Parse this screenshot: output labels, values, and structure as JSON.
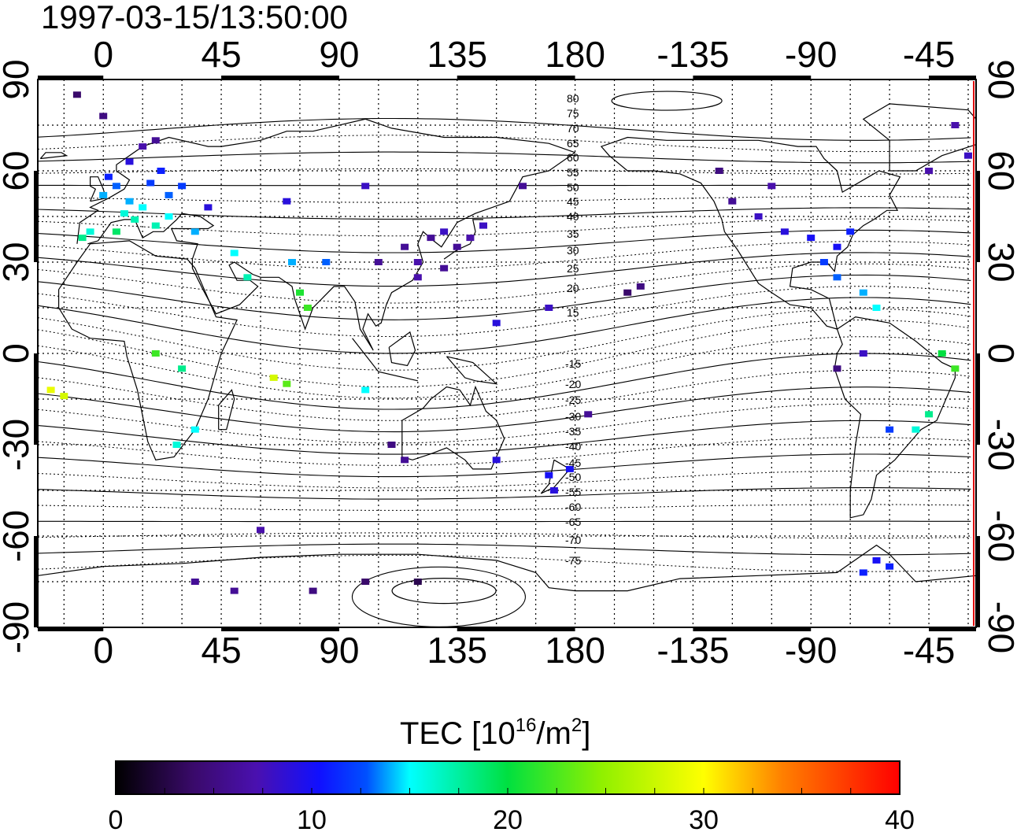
{
  "chart_data": {
    "type": "heatmap",
    "title": "1997-03-15/13:50:00",
    "x_ticks_top": [
      "0",
      "45",
      "90",
      "135",
      "180",
      "-135",
      "-90",
      "-45"
    ],
    "x_ticks_bottom": [
      "0",
      "45",
      "90",
      "135",
      "180",
      "-135",
      "-90",
      "-45"
    ],
    "y_ticks_left": [
      "90",
      "60",
      "30",
      "0",
      "-30",
      "-60",
      "-90"
    ],
    "y_ticks_right": [
      "90",
      "60",
      "30",
      "0",
      "-30",
      "-60",
      "-90"
    ],
    "lon_range": [
      -25,
      333
    ],
    "lat_range": [
      -90,
      90
    ],
    "grid": true,
    "contour_labels_north": [
      "80",
      "75",
      "70",
      "65",
      "60",
      "55",
      "50",
      "45",
      "40",
      "35",
      "30",
      "25",
      "20",
      "15"
    ],
    "contour_labels_south": [
      "-15",
      "-20",
      "-25",
      "-30",
      "-35",
      "-40",
      "-45",
      "-50",
      "-55",
      "-60",
      "-65",
      "-70",
      "-75"
    ],
    "colorbar": {
      "label": "TEC  [10",
      "label_sup": "16",
      "label_mid": "/m",
      "label_sup2": "2",
      "label_end": "]",
      "min": 0,
      "max": 40,
      "ticks": [
        "0",
        "10",
        "20",
        "30",
        "40"
      ],
      "colors": [
        "#000000",
        "#3a0a6b",
        "#4a10b0",
        "#1010ff",
        "#0080ff",
        "#00ffff",
        "#00e040",
        "#90f000",
        "#ffff00",
        "#ff8000",
        "#ff0000"
      ]
    },
    "tec_points": [
      {
        "lon": 0,
        "lat": 52,
        "v": 14
      },
      {
        "lon": 5,
        "lat": 55,
        "v": 13
      },
      {
        "lon": 10,
        "lat": 50,
        "v": 14
      },
      {
        "lon": 15,
        "lat": 48,
        "v": 15
      },
      {
        "lon": 8,
        "lat": 46,
        "v": 16
      },
      {
        "lon": 12,
        "lat": 44,
        "v": 17
      },
      {
        "lon": 2,
        "lat": 58,
        "v": 11
      },
      {
        "lon": 18,
        "lat": 56,
        "v": 12
      },
      {
        "lon": 22,
        "lat": 60,
        "v": 11
      },
      {
        "lon": 25,
        "lat": 52,
        "v": 13
      },
      {
        "lon": 30,
        "lat": 55,
        "v": 12
      },
      {
        "lon": 20,
        "lat": 42,
        "v": 17
      },
      {
        "lon": -5,
        "lat": 40,
        "v": 16
      },
      {
        "lon": -8,
        "lat": 38,
        "v": 18
      },
      {
        "lon": 5,
        "lat": 40,
        "v": 19
      },
      {
        "lon": 10,
        "lat": 63,
        "v": 9
      },
      {
        "lon": 15,
        "lat": 68,
        "v": 7
      },
      {
        "lon": 20,
        "lat": 70,
        "v": 6
      },
      {
        "lon": 0,
        "lat": 78,
        "v": 5
      },
      {
        "lon": -10,
        "lat": 85,
        "v": 4
      },
      {
        "lon": 25,
        "lat": 45,
        "v": 15
      },
      {
        "lon": 35,
        "lat": 40,
        "v": 14
      },
      {
        "lon": 50,
        "lat": 33,
        "v": 15
      },
      {
        "lon": 55,
        "lat": 25,
        "v": 17
      },
      {
        "lon": 75,
        "lat": 20,
        "v": 21
      },
      {
        "lon": 78,
        "lat": 15,
        "v": 22
      },
      {
        "lon": 72,
        "lat": 30,
        "v": 14
      },
      {
        "lon": 85,
        "lat": 30,
        "v": 13
      },
      {
        "lon": 105,
        "lat": 30,
        "v": 6
      },
      {
        "lon": 115,
        "lat": 35,
        "v": 6
      },
      {
        "lon": 120,
        "lat": 30,
        "v": 7
      },
      {
        "lon": 125,
        "lat": 38,
        "v": 6
      },
      {
        "lon": 130,
        "lat": 40,
        "v": 8
      },
      {
        "lon": 135,
        "lat": 35,
        "v": 6
      },
      {
        "lon": 140,
        "lat": 38,
        "v": 7
      },
      {
        "lon": 145,
        "lat": 42,
        "v": 8
      },
      {
        "lon": 120,
        "lat": 25,
        "v": 7
      },
      {
        "lon": 130,
        "lat": 28,
        "v": 6
      },
      {
        "lon": 100,
        "lat": 55,
        "v": 8
      },
      {
        "lon": 70,
        "lat": 50,
        "v": 9
      },
      {
        "lon": 40,
        "lat": 48,
        "v": 9
      },
      {
        "lon": 35,
        "lat": -25,
        "v": 15
      },
      {
        "lon": 28,
        "lat": -30,
        "v": 16
      },
      {
        "lon": 20,
        "lat": 0,
        "v": 22
      },
      {
        "lon": 30,
        "lat": -5,
        "v": 18
      },
      {
        "lon": -20,
        "lat": -12,
        "v": 29
      },
      {
        "lon": -15,
        "lat": -14,
        "v": 28
      },
      {
        "lon": 65,
        "lat": -8,
        "v": 28
      },
      {
        "lon": 70,
        "lat": -10,
        "v": 23
      },
      {
        "lon": 100,
        "lat": -12,
        "v": 15
      },
      {
        "lon": 110,
        "lat": -30,
        "v": 5
      },
      {
        "lon": 115,
        "lat": -35,
        "v": 6
      },
      {
        "lon": 150,
        "lat": -35,
        "v": 9
      },
      {
        "lon": 170,
        "lat": -40,
        "v": 10
      },
      {
        "lon": 172,
        "lat": -45,
        "v": 9
      },
      {
        "lon": 178,
        "lat": -38,
        "v": 10
      },
      {
        "lon": 185,
        "lat": -20,
        "v": 6
      },
      {
        "lon": 200,
        "lat": 20,
        "v": 4
      },
      {
        "lon": 205,
        "lat": 22,
        "v": 5
      },
      {
        "lon": 235,
        "lat": 60,
        "v": 5
      },
      {
        "lon": 240,
        "lat": 50,
        "v": 6
      },
      {
        "lon": 250,
        "lat": 45,
        "v": 8
      },
      {
        "lon": 260,
        "lat": 40,
        "v": 9
      },
      {
        "lon": 270,
        "lat": 38,
        "v": 10
      },
      {
        "lon": 280,
        "lat": 35,
        "v": 10
      },
      {
        "lon": 285,
        "lat": 40,
        "v": 11
      },
      {
        "lon": 275,
        "lat": 30,
        "v": 12
      },
      {
        "lon": 280,
        "lat": 25,
        "v": 13
      },
      {
        "lon": 290,
        "lat": 20,
        "v": 14
      },
      {
        "lon": 295,
        "lat": 15,
        "v": 15
      },
      {
        "lon": 255,
        "lat": 55,
        "v": 7
      },
      {
        "lon": 300,
        "lat": -25,
        "v": 12
      },
      {
        "lon": 310,
        "lat": -25,
        "v": 16
      },
      {
        "lon": 315,
        "lat": -20,
        "v": 18
      },
      {
        "lon": 325,
        "lat": -5,
        "v": 22
      },
      {
        "lon": 320,
        "lat": 0,
        "v": 20
      },
      {
        "lon": 290,
        "lat": 0,
        "v": 8
      },
      {
        "lon": 280,
        "lat": -5,
        "v": 5
      },
      {
        "lon": 295,
        "lat": -68,
        "v": 10
      },
      {
        "lon": 300,
        "lat": -70,
        "v": 11
      },
      {
        "lon": 290,
        "lat": -72,
        "v": 11
      },
      {
        "lon": 35,
        "lat": -75,
        "v": 6
      },
      {
        "lon": 50,
        "lat": -78,
        "v": 6
      },
      {
        "lon": 80,
        "lat": -78,
        "v": 5
      },
      {
        "lon": 100,
        "lat": -75,
        "v": 4
      },
      {
        "lon": 120,
        "lat": -75,
        "v": 3
      },
      {
        "lon": 60,
        "lat": -58,
        "v": 7
      },
      {
        "lon": 325,
        "lat": 75,
        "v": 7
      },
      {
        "lon": 330,
        "lat": 65,
        "v": 8
      },
      {
        "lon": 315,
        "lat": 60,
        "v": 7
      },
      {
        "lon": 160,
        "lat": 55,
        "v": 6
      },
      {
        "lon": 170,
        "lat": 15,
        "v": 8
      },
      {
        "lon": 150,
        "lat": 10,
        "v": 9
      }
    ]
  }
}
